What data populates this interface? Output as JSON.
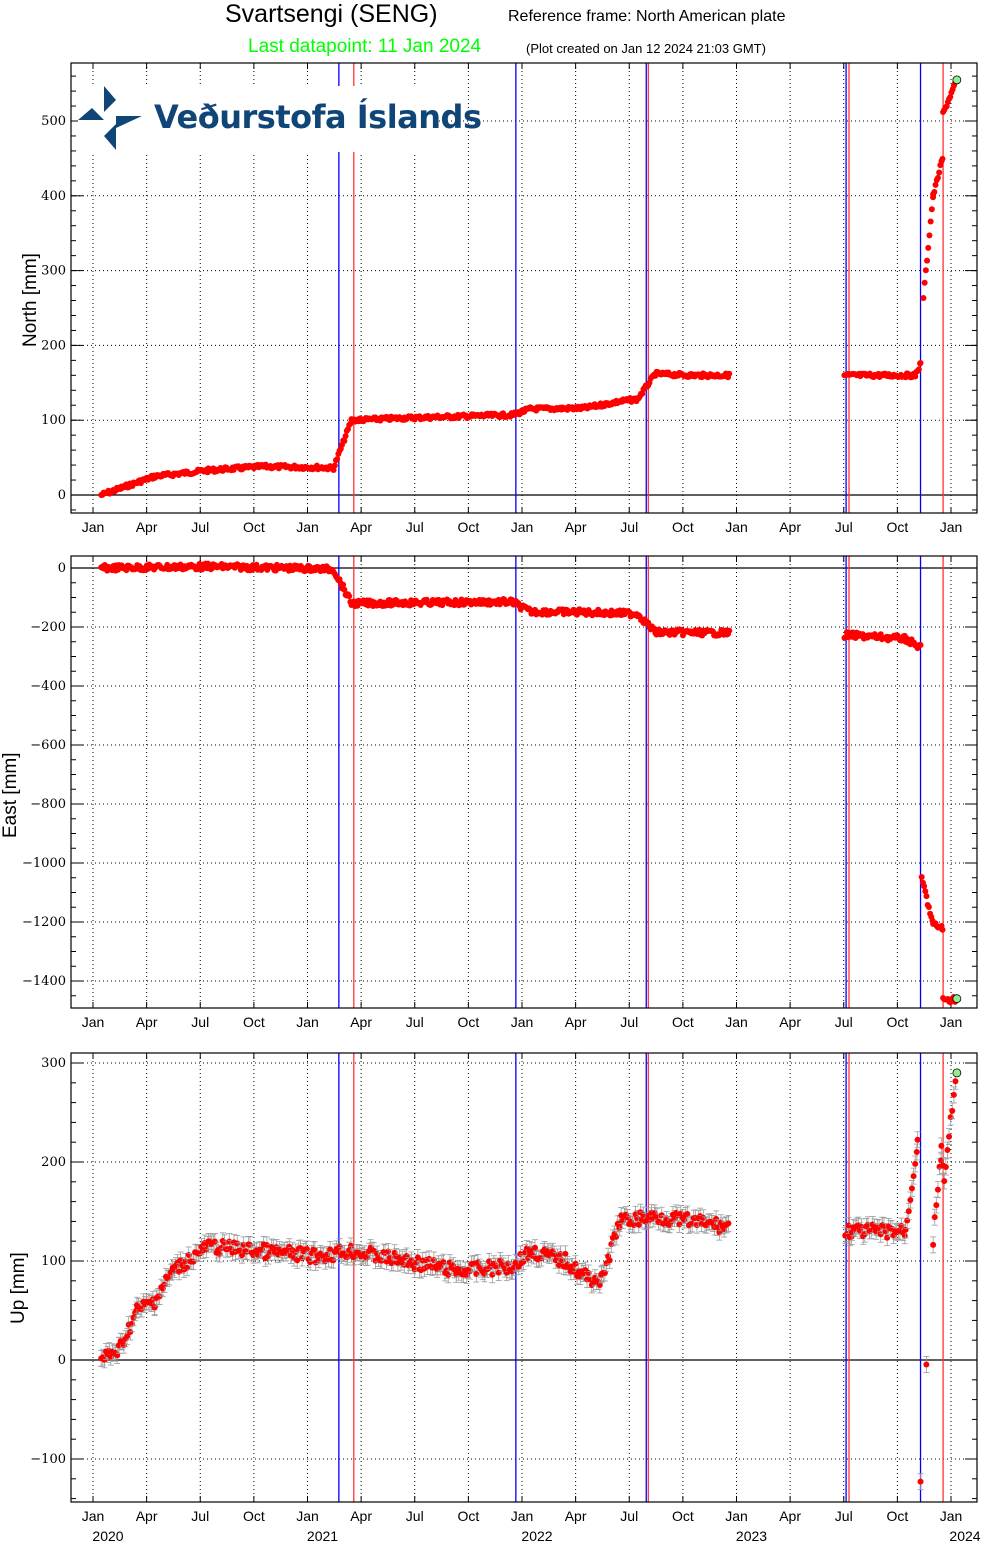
{
  "header": {
    "title": "Svartsengi (SENG)",
    "reference_frame": "Reference frame: North American plate",
    "last_datapoint": "Last datapoint: 11 Jan 2024",
    "plot_created": "(Plot created on Jan 12 2024 21:03 GMT)"
  },
  "logo": {
    "text": "Veðurstofa Íslands",
    "color": "#0f4677"
  },
  "colors": {
    "data": "#ff0000",
    "error_bar": "#999999",
    "blue_line": "#0000ff",
    "red_line": "#ff3333",
    "last_point": "#90ee90",
    "title_green": "#00ff00"
  },
  "x_axis": {
    "month_ticks": [
      "Jan",
      "Apr",
      "Jul",
      "Oct",
      "Jan",
      "Apr",
      "Jul",
      "Oct",
      "Jan",
      "Apr",
      "Jul",
      "Oct",
      "Jan",
      "Apr",
      "Jul",
      "Oct",
      "Jan"
    ],
    "year_labels": [
      "2020",
      "2021",
      "2022",
      "2023",
      "2024"
    ]
  },
  "event_lines": {
    "blue": [
      "2021-02-24",
      "2021-12-21",
      "2022-07-30",
      "2023-07-05",
      "2023-11-10"
    ],
    "red": [
      "2021-03-19",
      "2022-08-03",
      "2023-07-10",
      "2023-12-18"
    ]
  },
  "chart_data": [
    {
      "type": "scatter",
      "title": "North",
      "ylabel": "North [mm]",
      "ylim": [
        -25,
        575
      ],
      "yticks": [
        0,
        100,
        200,
        300,
        400,
        500
      ],
      "x": [
        "2020-01",
        "2020-04",
        "2020-07",
        "2020-10",
        "2021-01",
        "2021-02",
        "2021-03",
        "2021-06",
        "2021-09",
        "2021-12",
        "2022-01",
        "2022-04",
        "2022-06",
        "2022-07",
        "2022-08",
        "2022-10",
        "2022-12",
        "2023-07",
        "2023-09",
        "2023-11-01",
        "2023-11-10",
        "2023-11-15",
        "2023-12-01",
        "2023-12-17",
        "2023-12-18",
        "2024-01-11"
      ],
      "values": [
        0,
        25,
        33,
        38,
        37,
        36,
        100,
        103,
        105,
        107,
        115,
        116,
        125,
        128,
        162,
        160,
        160,
        160,
        160,
        160,
        175,
        265,
        400,
        450,
        510,
        555
      ]
    },
    {
      "type": "scatter",
      "title": "East",
      "ylabel": "East [mm]",
      "ylim": [
        -1490,
        40
      ],
      "yticks": [
        0,
        -200,
        -400,
        -600,
        -800,
        -1000,
        -1200,
        -1400
      ],
      "x": [
        "2020-01",
        "2020-07",
        "2021-01",
        "2021-02",
        "2021-03",
        "2021-06",
        "2021-12",
        "2022-01",
        "2022-04",
        "2022-07",
        "2022-08",
        "2022-12",
        "2023-07",
        "2023-10",
        "2023-11-10",
        "2023-11-12",
        "2023-12-01",
        "2023-12-17",
        "2023-12-18",
        "2024-01-11"
      ],
      "values": [
        0,
        5,
        -2,
        -5,
        -120,
        -118,
        -115,
        -148,
        -150,
        -155,
        -218,
        -220,
        -228,
        -240,
        -270,
        -1050,
        -1210,
        -1220,
        -1465,
        -1460
      ]
    },
    {
      "type": "scatter",
      "title": "Up",
      "ylabel": "Up [mm]",
      "ylim": [
        -145,
        310
      ],
      "yticks": [
        -100,
        0,
        100,
        200,
        300
      ],
      "x": [
        "2020-01",
        "2020-02",
        "2020-03",
        "2020-04",
        "2020-05",
        "2020-07",
        "2020-10",
        "2021-01",
        "2021-03",
        "2021-06",
        "2021-09",
        "2021-12",
        "2022-01",
        "2022-03",
        "2022-04",
        "2022-05",
        "2022-06",
        "2022-08",
        "2022-12",
        "2023-07",
        "2023-10",
        "2023-11-05",
        "2023-11-10",
        "2023-11-20",
        "2023-12-01",
        "2023-12-15",
        "2023-12-20",
        "2024-01-11"
      ],
      "values": [
        0,
        10,
        50,
        60,
        90,
        115,
        110,
        105,
        110,
        100,
        90,
        95,
        110,
        100,
        85,
        80,
        140,
        145,
        135,
        130,
        130,
        220,
        -120,
        0,
        120,
        210,
        185,
        290
      ]
    }
  ]
}
